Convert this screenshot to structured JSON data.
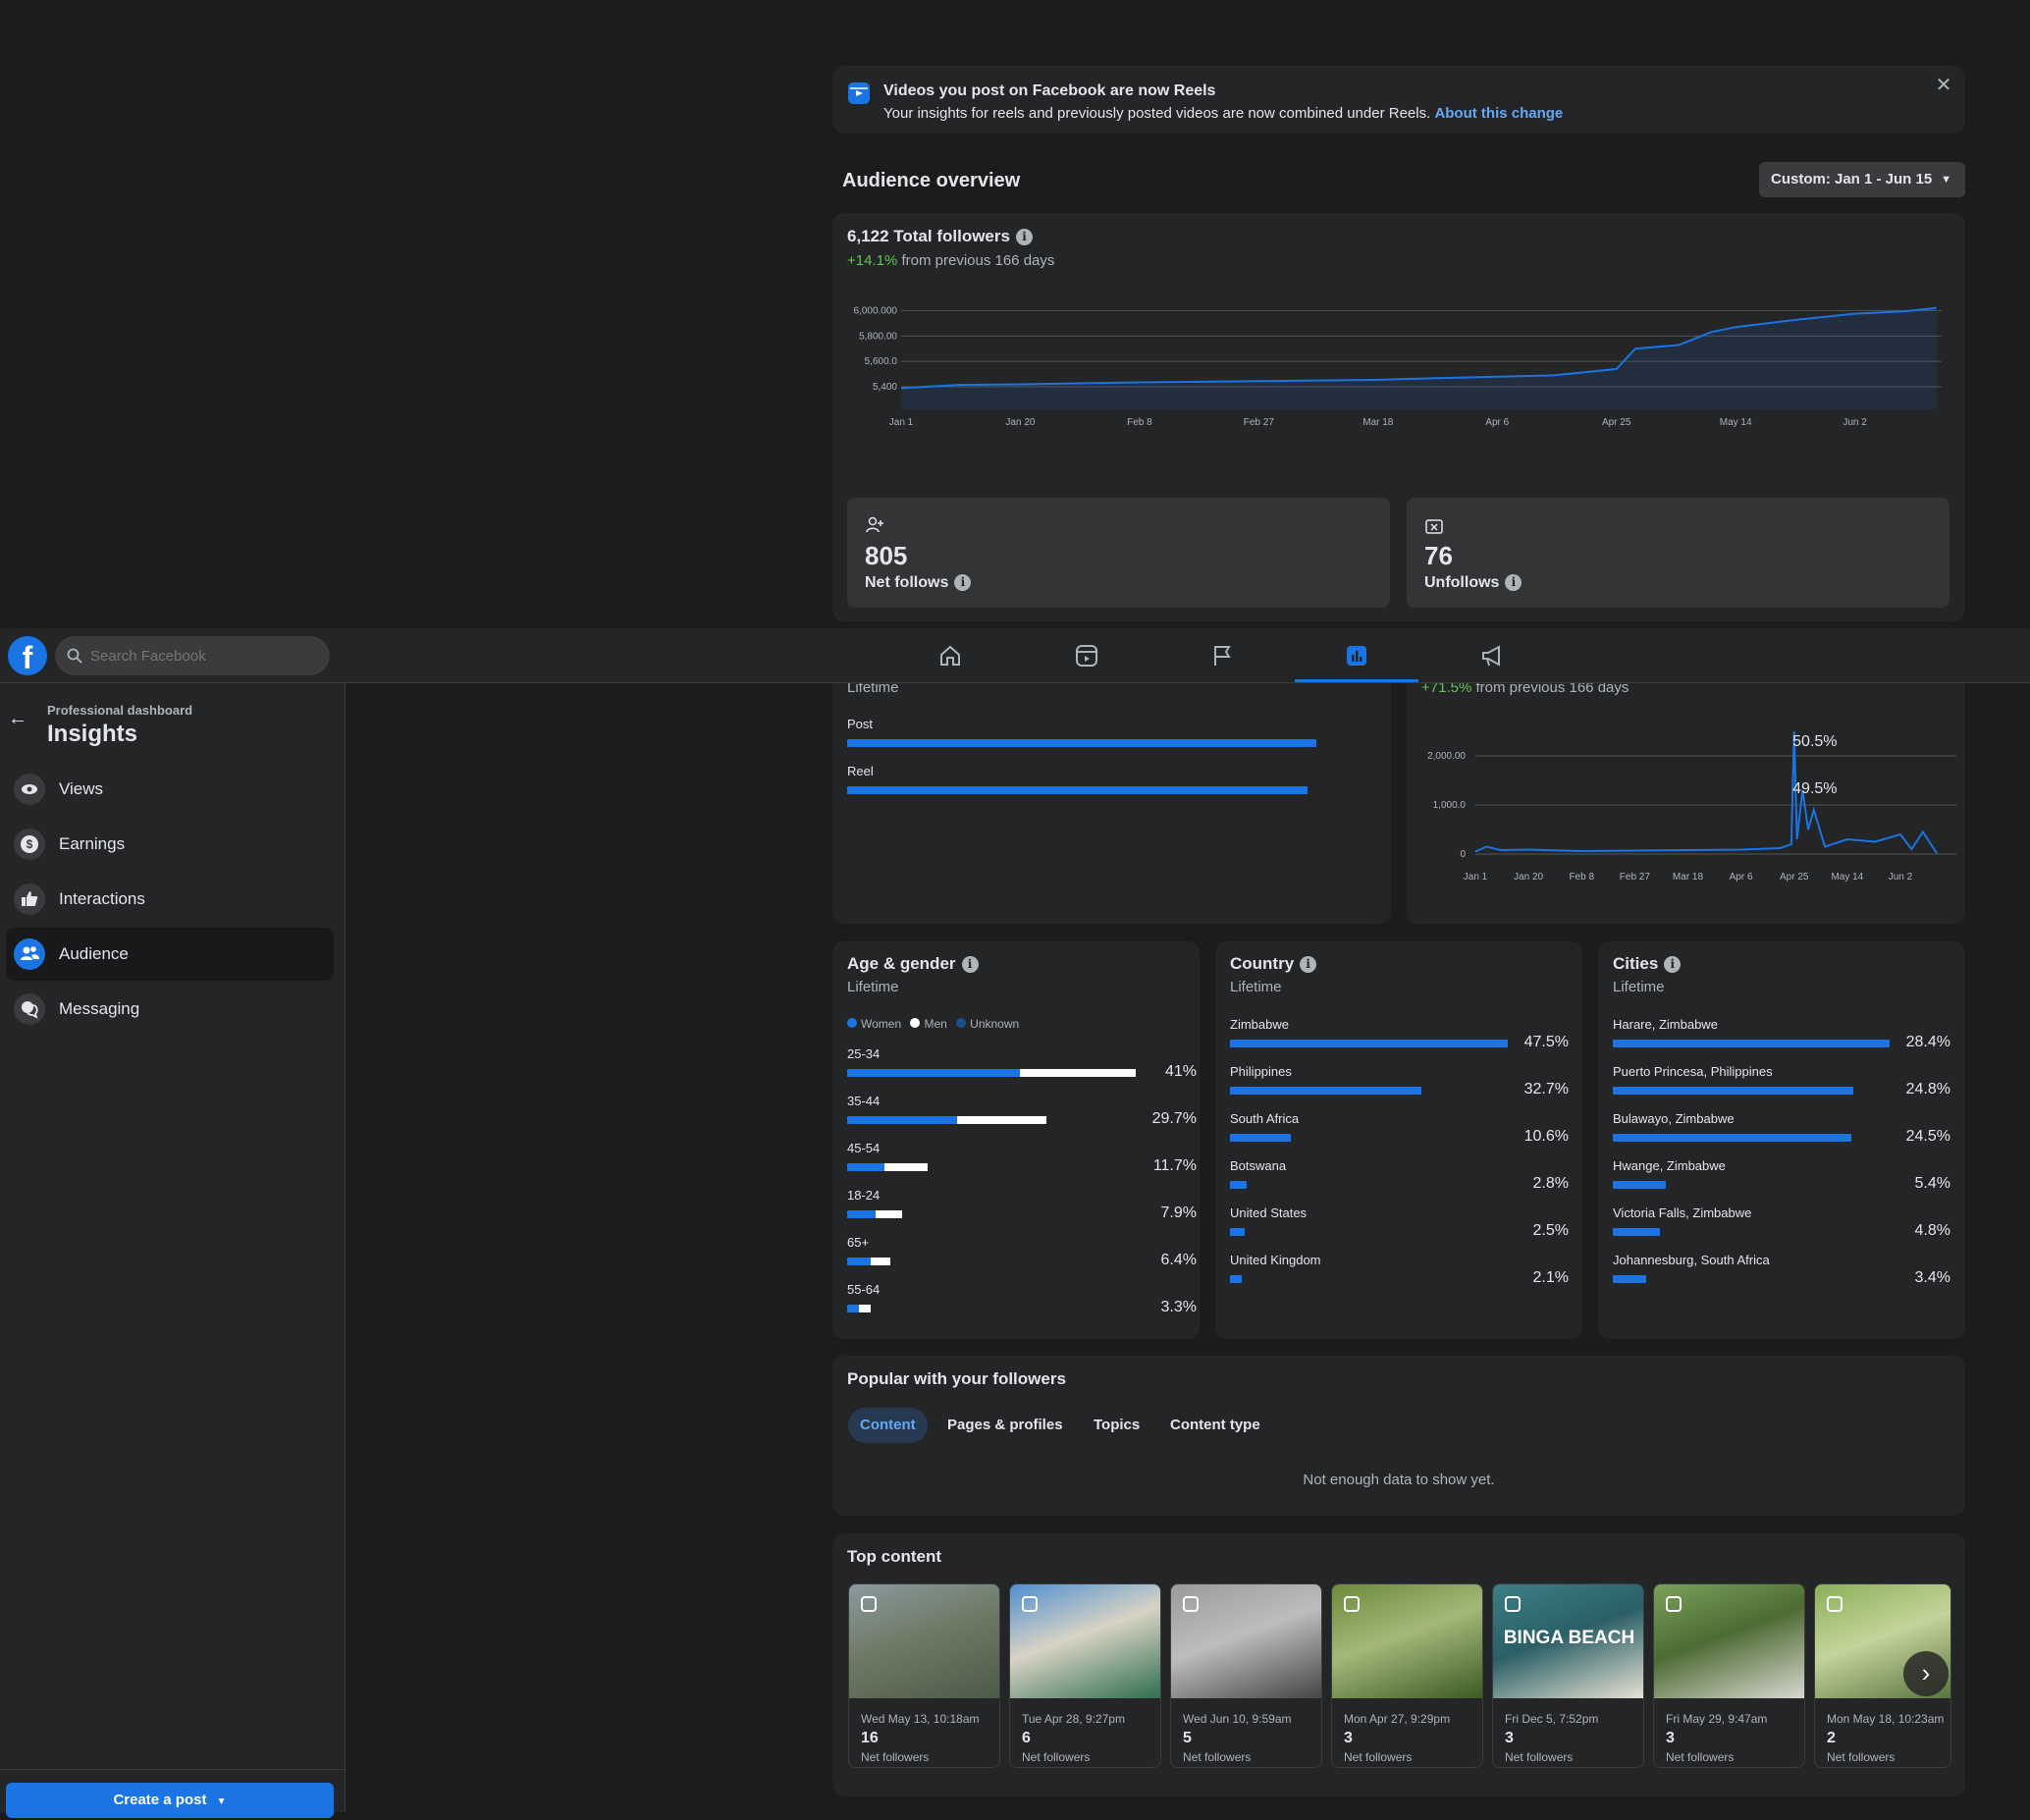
{
  "banner": {
    "title": "Videos you post on Facebook are now Reels",
    "text": "Your insights for reels and previously posted videos are now combined under Reels.",
    "link": "About this change"
  },
  "overview": {
    "title": "Audience overview",
    "date_range": "Custom: Jan 1 - Jun 15"
  },
  "followers": {
    "total": "6,122 Total followers",
    "change": "+14.1%",
    "change_text": "from previous 166 days"
  },
  "chart_data": [
    {
      "type": "area",
      "title": "",
      "x_ticks": [
        "Jan 1",
        "Jan 20",
        "Feb 8",
        "Feb 27",
        "Mar 18",
        "Apr 6",
        "Apr 25",
        "May 14",
        "Jun 2"
      ],
      "y_ticks": [
        "5,400",
        "5,600.0",
        "5,800.00",
        "6,000.000"
      ],
      "ylim": [
        5300,
        6150
      ],
      "series": [
        {
          "x": [
            "Jan 1",
            "Jan 10",
            "Jan 20",
            "Feb 8",
            "Feb 27",
            "Mar 18",
            "Mar 25",
            "Apr 6",
            "Apr 15",
            "Apr 25",
            "Apr 28",
            "May 5",
            "May 10",
            "May 14",
            "May 24",
            "Jun 2",
            "Jun 10",
            "Jun 15"
          ],
          "values": [
            5390,
            5415,
            5420,
            5435,
            5445,
            5455,
            5465,
            5480,
            5490,
            5540,
            5700,
            5730,
            5830,
            5870,
            5930,
            5975,
            5995,
            6020
          ]
        }
      ],
      "grid": true,
      "color": "#1b74e4"
    },
    {
      "type": "line",
      "title": "",
      "change": "+71.5%",
      "change_text": "from previous 166 days",
      "x_ticks": [
        "Jan 1",
        "Jan 20",
        "Feb 8",
        "Feb 27",
        "Mar 18",
        "Apr 6",
        "Apr 25",
        "May 14",
        "Jun 2"
      ],
      "y_ticks": [
        "0",
        "1,000.0",
        "2,000.00"
      ],
      "ylim": [
        0,
        2600
      ],
      "series": [
        {
          "x": [
            "Jan 1",
            "Jan 5",
            "Jan 10",
            "Jan 20",
            "Feb 8",
            "Feb 27",
            "Mar 18",
            "Apr 6",
            "Apr 20",
            "Apr 24",
            "Apr 25",
            "Apr 26",
            "Apr 28",
            "Apr 30",
            "May 2",
            "May 6",
            "May 14",
            "May 24",
            "Jun 2",
            "Jun 6",
            "Jun 10",
            "Jun 15"
          ],
          "values": [
            50,
            150,
            80,
            90,
            60,
            70,
            80,
            90,
            120,
            200,
            2500,
            300,
            1300,
            500,
            900,
            150,
            300,
            250,
            400,
            100,
            450,
            20
          ]
        }
      ],
      "grid": true,
      "color": "#1b74e4"
    }
  ],
  "net_follows": {
    "value": "805",
    "label": "Net follows"
  },
  "unfollows": {
    "value": "76",
    "label": "Unfollows"
  },
  "topbar": {
    "search_placeholder": "Search Facebook"
  },
  "sidebar": {
    "subtitle": "Professional dashboard",
    "title": "Insights",
    "items": [
      {
        "label": "Views",
        "icon": "eye-icon"
      },
      {
        "label": "Earnings",
        "icon": "dollar-icon"
      },
      {
        "label": "Interactions",
        "icon": "thumbs-up-icon"
      },
      {
        "label": "Audience",
        "icon": "people-icon"
      },
      {
        "label": "Messaging",
        "icon": "chat-icon"
      }
    ],
    "create_post": "Create a post"
  },
  "content_type": {
    "sublabel": "Lifetime",
    "rows": [
      {
        "label": "Post",
        "pct": "50.5%",
        "value": 0.505
      },
      {
        "label": "Reel",
        "pct": "49.5%",
        "value": 0.495
      }
    ]
  },
  "age_gender": {
    "title": "Age & gender",
    "sublabel": "Lifetime",
    "legend": [
      "Women",
      "Men",
      "Unknown"
    ],
    "rows": [
      {
        "label": "25-34",
        "pct": "41%",
        "total": 1.0,
        "women": 0.6
      },
      {
        "label": "35-44",
        "pct": "29.7%",
        "total": 0.69,
        "women": 0.38
      },
      {
        "label": "45-54",
        "pct": "11.7%",
        "total": 0.28,
        "women": 0.13
      },
      {
        "label": "18-24",
        "pct": "7.9%",
        "total": 0.19,
        "women": 0.1
      },
      {
        "label": "65+",
        "pct": "6.4%",
        "total": 0.15,
        "women": 0.08
      },
      {
        "label": "55-64",
        "pct": "3.3%",
        "total": 0.08,
        "women": 0.04
      }
    ]
  },
  "country": {
    "title": "Country",
    "sublabel": "Lifetime",
    "rows": [
      {
        "label": "Zimbabwe",
        "pct": "47.5%",
        "value": 1.0
      },
      {
        "label": "Philippines",
        "pct": "32.7%",
        "value": 0.69
      },
      {
        "label": "South Africa",
        "pct": "10.6%",
        "value": 0.22
      },
      {
        "label": "Botswana",
        "pct": "2.8%",
        "value": 0.06
      },
      {
        "label": "United States",
        "pct": "2.5%",
        "value": 0.053
      },
      {
        "label": "United Kingdom",
        "pct": "2.1%",
        "value": 0.044
      }
    ]
  },
  "cities": {
    "title": "Cities",
    "sublabel": "Lifetime",
    "rows": [
      {
        "label": "Harare, Zimbabwe",
        "pct": "28.4%",
        "value": 1.0
      },
      {
        "label": "Puerto Princesa, Philippines",
        "pct": "24.8%",
        "value": 0.87
      },
      {
        "label": "Bulawayo, Zimbabwe",
        "pct": "24.5%",
        "value": 0.86
      },
      {
        "label": "Hwange, Zimbabwe",
        "pct": "5.4%",
        "value": 0.19
      },
      {
        "label": "Victoria Falls, Zimbabwe",
        "pct": "4.8%",
        "value": 0.17
      },
      {
        "label": "Johannesburg, South Africa",
        "pct": "3.4%",
        "value": 0.12
      }
    ]
  },
  "popular": {
    "title": "Popular with your followers",
    "tabs": [
      "Content",
      "Pages & profiles",
      "Topics",
      "Content type"
    ],
    "empty": "Not enough data to show yet."
  },
  "top_content": {
    "title": "Top content",
    "items": [
      {
        "date": "Wed May 13, 10:18am",
        "count": "16",
        "label": "Net followers",
        "colors": [
          "#8a9a9f",
          "#4d5a47",
          "#6f7a66"
        ]
      },
      {
        "date": "Tue Apr 28, 9:27pm",
        "count": "6",
        "label": "Net followers",
        "colors": [
          "#4f8fd1",
          "#2e6e4e",
          "#d8d3c4"
        ]
      },
      {
        "date": "Wed Jun 10, 9:59am",
        "count": "5",
        "label": "Net followers",
        "colors": [
          "#9a9a9a",
          "#444",
          "#bdbdbd"
        ]
      },
      {
        "date": "Mon Apr 27, 9:29pm",
        "count": "3",
        "label": "Net followers",
        "colors": [
          "#6b8a3a",
          "#3b5a22",
          "#a3b87a"
        ]
      },
      {
        "date": "Fri Dec 5, 7:52pm",
        "count": "3",
        "label": "Net followers",
        "colors": [
          "#3e7e86",
          "#e8e3d4",
          "#2a5f66"
        ],
        "overlay": "BINGA BEACH"
      },
      {
        "date": "Fri May 29, 9:47am",
        "count": "3",
        "label": "Net followers",
        "colors": [
          "#7aa05a",
          "#d9d9d2",
          "#4d6b33"
        ]
      },
      {
        "date": "Mon May 18, 10:23am",
        "count": "2",
        "label": "Net followers",
        "colors": [
          "#8ab05a",
          "#536e3a",
          "#c4d49a"
        ]
      }
    ]
  }
}
